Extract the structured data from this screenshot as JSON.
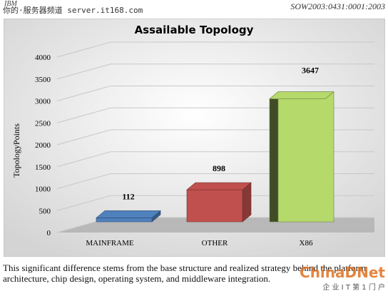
{
  "header": {
    "left": "IBM",
    "right": "SOW2003:0431:0001:2003",
    "watermark": "你的·服务器频道 server.it168.com"
  },
  "chart_data": {
    "type": "bar3d",
    "title": "Assailable Topology",
    "y_label": "TopologyPoints",
    "categories": [
      "MAINFRAME",
      "OTHER",
      "X86"
    ],
    "values": [
      112,
      898,
      3647
    ],
    "colors": [
      "#4f81bd",
      "#c0504d",
      "#b5d96a"
    ],
    "ylim": [
      0,
      4000
    ],
    "yticks": [
      0,
      500,
      1000,
      1500,
      2000,
      2500,
      3000,
      3500,
      4000
    ],
    "grid": true
  },
  "caption": "This significant difference stems from the base structure and realized strategy behind the platform architecture, chip design, operating system, and middleware integration.",
  "footer_watermark": {
    "brand": "ChinaDNet",
    "slogan": "企 业 I T 第 1 门 户"
  }
}
